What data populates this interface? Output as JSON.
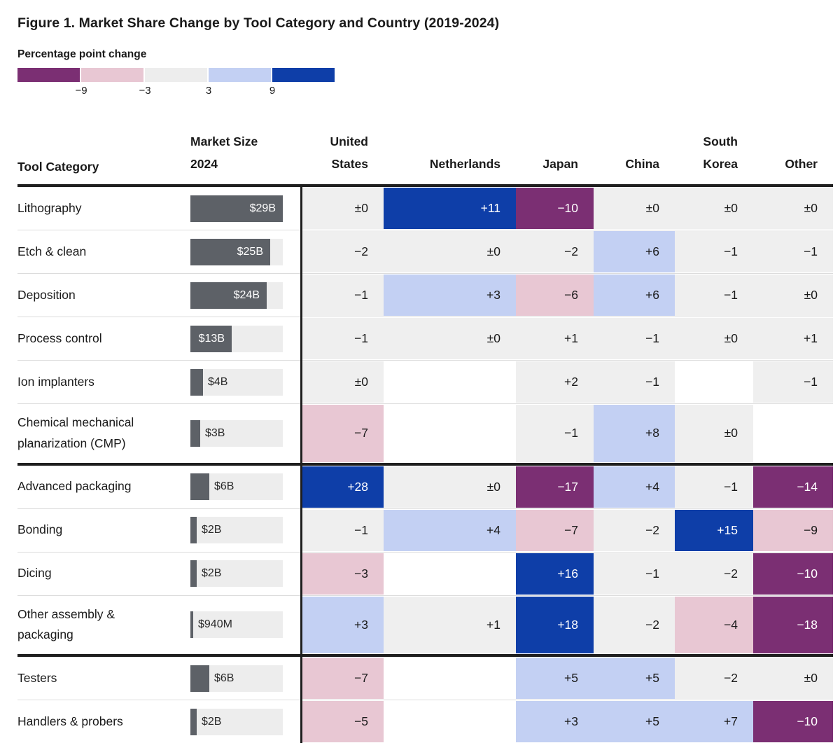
{
  "title": "Figure 1. Market Share Change by Tool Category and Country (2019-2024)",
  "legend": {
    "label": "Percentage point change",
    "ticks": [
      "−9",
      "−3",
      "3",
      "9"
    ],
    "swatch_names": [
      "strong-decrease",
      "decrease",
      "neutral",
      "increase",
      "strong-increase"
    ],
    "swatch_colors": [
      "#7b2f73",
      "#e8c7d3",
      "#ededed",
      "#c3d0f3",
      "#0e3ea8"
    ]
  },
  "colors": {
    "neutral": "#efefef",
    "pos_light": "#c3d0f3",
    "pos_dark": "#0e3ea8",
    "neg_light": "#e8c7d3",
    "neg_dark": "#7b2f73",
    "bar_fill": "#5d6167",
    "bar_track": "#ededed",
    "text_dark": "#1a1a1a",
    "text_light": "#ffffff"
  },
  "table": {
    "headers": {
      "tool": "Tool Category",
      "market": "Market Size\n2024",
      "countries": [
        "United\nStates",
        "Netherlands",
        "Japan",
        "China",
        "South\nKorea",
        "Other"
      ]
    }
  },
  "chart_data": {
    "type": "heatmap",
    "title": "Figure 1. Market Share Change by Tool Category and Country (2019-2024)",
    "value_label": "Percentage point change",
    "legend_breakpoints": [
      -9,
      -3,
      3,
      9
    ],
    "columns": [
      "United States",
      "Netherlands",
      "Japan",
      "China",
      "South Korea",
      "Other"
    ],
    "sections": [
      {
        "rows": [
          {
            "label": "Lithography",
            "market_size_label": "$29B",
            "market_size_billions": 29,
            "values": [
              "±0",
              "+11",
              "−10",
              "±0",
              "±0",
              "±0"
            ]
          },
          {
            "label": "Etch & clean",
            "market_size_label": "$25B",
            "market_size_billions": 25,
            "values": [
              "−2",
              "±0",
              "−2",
              "+6",
              "−1",
              "−1"
            ]
          },
          {
            "label": "Deposition",
            "market_size_label": "$24B",
            "market_size_billions": 24,
            "values": [
              "−1",
              "+3",
              "−6",
              "+6",
              "−1",
              "±0"
            ]
          },
          {
            "label": "Process control",
            "market_size_label": "$13B",
            "market_size_billions": 13,
            "values": [
              "−1",
              "±0",
              "+1",
              "−1",
              "±0",
              "+1"
            ]
          },
          {
            "label": "Ion implanters",
            "market_size_label": "$4B",
            "market_size_billions": 4,
            "values": [
              "±0",
              null,
              "+2",
              "−1",
              null,
              "−1"
            ]
          },
          {
            "label": "Chemical mechanical planarization (CMP)",
            "market_size_label": "$3B",
            "market_size_billions": 3,
            "values": [
              "−7",
              null,
              "−1",
              "+8",
              "±0",
              null
            ]
          }
        ]
      },
      {
        "rows": [
          {
            "label": "Advanced packaging",
            "market_size_label": "$6B",
            "market_size_billions": 6,
            "values": [
              "+28",
              "±0",
              "−17",
              "+4",
              "−1",
              "−14"
            ]
          },
          {
            "label": "Bonding",
            "market_size_label": "$2B",
            "market_size_billions": 2,
            "values": [
              "−1",
              "+4",
              "−7",
              "−2",
              "+15",
              "−9"
            ]
          },
          {
            "label": "Dicing",
            "market_size_label": "$2B",
            "market_size_billions": 2,
            "values": [
              "−3",
              null,
              "+16",
              "−1",
              "−2",
              "−10"
            ]
          },
          {
            "label": "Other assembly & packaging",
            "market_size_label": "$940M",
            "market_size_billions": 0.94,
            "values": [
              "+3",
              "+1",
              "+18",
              "−2",
              "−4",
              "−18"
            ]
          }
        ]
      },
      {
        "rows": [
          {
            "label": "Testers",
            "market_size_label": "$6B",
            "market_size_billions": 6,
            "values": [
              "−7",
              null,
              "+5",
              "+5",
              "−2",
              "±0"
            ]
          },
          {
            "label": "Handlers & probers",
            "market_size_label": "$2B",
            "market_size_billions": 2,
            "values": [
              "−5",
              null,
              "+3",
              "+5",
              "+7",
              "−10"
            ]
          }
        ]
      }
    ]
  }
}
